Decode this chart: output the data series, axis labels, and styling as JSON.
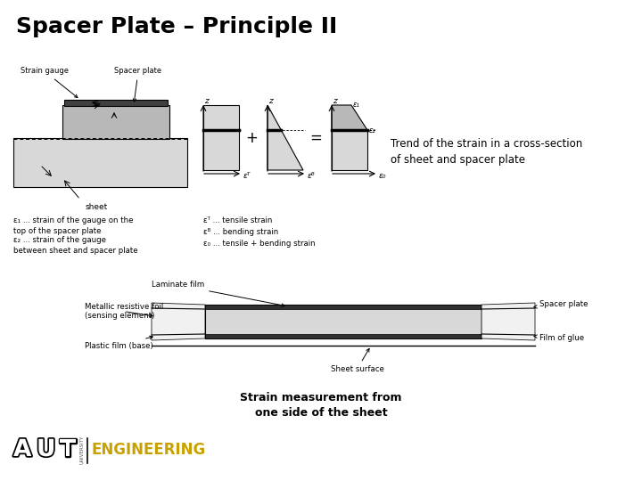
{
  "title": "Spacer Plate – Principle II",
  "bg_color": "#ffffff",
  "title_color": "#000000",
  "title_fontsize": 18,
  "title_fontweight": "bold",
  "text_trend": "Trend of the strain in a cross-section\nof sheet and spacer plate",
  "text_strain_meas": "Strain measurement from\none side of the sheet",
  "legend_left_1": "ε₁ ... strain of the gauge on the\ntop of the spacer plate",
  "legend_left_2": "ε₂ ... strain of the gauge\nbetween sheet and spacer plate",
  "legend_right_1": "εᵀ ... tensile strain",
  "legend_right_2": "εᴮ ... bending strain",
  "legend_right_3": "ε₀ ... tensile + bending strain",
  "label_strain_gauge": "Strain gauge",
  "label_spacer_plate": "Spacer plate",
  "label_sheet": "sheet",
  "label_laminate": "Laminate film",
  "label_metallic": "Metallic resistive foil\n(sensing element)",
  "label_plastic": "Plastic film (base)",
  "label_sheet_surface": "Sheet surface",
  "label_spacer_plate2": "Spacer plate",
  "label_film_glue": "Film of glue",
  "aut_color": "#c8a000",
  "gray_light": "#d8d8d8",
  "gray_mid": "#b8b8b8",
  "gray_dark": "#888888",
  "black": "#000000"
}
